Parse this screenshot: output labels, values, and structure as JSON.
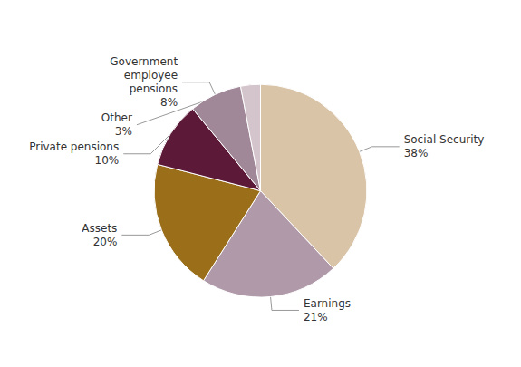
{
  "chart_data": {
    "type": "pie",
    "categories": [
      "Social Security",
      "Earnings",
      "Assets",
      "Private pensions",
      "Government\nemployee\npensions",
      "Other"
    ],
    "values": [
      38,
      21,
      20,
      10,
      8,
      3
    ],
    "value_labels": [
      "38%",
      "21%",
      "20%",
      "10%",
      "8%",
      "3%"
    ],
    "colors": [
      "#d9c4a8",
      "#b09aaa",
      "#9b6e1a",
      "#5c1a38",
      "#a08898",
      "#d4c4cc"
    ],
    "data_labels": true
  }
}
